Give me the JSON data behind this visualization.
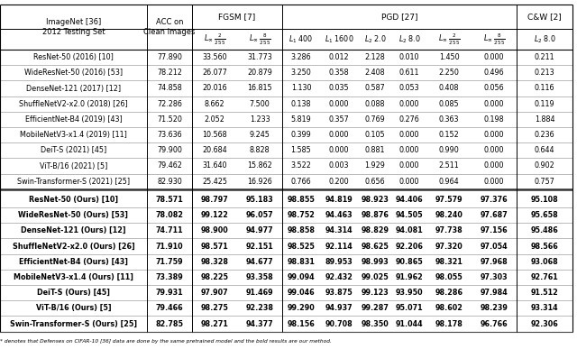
{
  "baseline_rows": [
    [
      "ResNet-50 (2016) [10]",
      "77.890",
      "33.560",
      "31.773",
      "3.286",
      "0.012",
      "2.128",
      "0.010",
      "1.450",
      "0.000",
      "0.211"
    ],
    [
      "WideResNet-50 (2016) [53]",
      "78.212",
      "26.077",
      "20.879",
      "3.250",
      "0.358",
      "2.408",
      "0.611",
      "2.250",
      "0.496",
      "0.213"
    ],
    [
      "DenseNet-121 (2017) [12]",
      "74.858",
      "20.016",
      "16.815",
      "1.130",
      "0.035",
      "0.587",
      "0.053",
      "0.408",
      "0.056",
      "0.116"
    ],
    [
      "ShuffleNetV2-x2.0 (2018) [26]",
      "72.286",
      "8.662",
      "7.500",
      "0.138",
      "0.000",
      "0.088",
      "0.000",
      "0.085",
      "0.000",
      "0.119"
    ],
    [
      "EfficientNet-B4 (2019) [43]",
      "71.520",
      "2.052",
      "1.233",
      "5.819",
      "0.357",
      "0.769",
      "0.276",
      "0.363",
      "0.198",
      "1.884"
    ],
    [
      "MobileNetV3-x1.4 (2019) [11]",
      "73.636",
      "10.568",
      "9.245",
      "0.399",
      "0.000",
      "0.105",
      "0.000",
      "0.152",
      "0.000",
      "0.236"
    ],
    [
      "DeiT-S (2021) [45]",
      "79.900",
      "20.684",
      "8.828",
      "1.585",
      "0.000",
      "0.881",
      "0.000",
      "0.990",
      "0.000",
      "0.644"
    ],
    [
      "ViT-B/16 (2021) [5]",
      "79.462",
      "31.640",
      "15.862",
      "3.522",
      "0.003",
      "1.929",
      "0.000",
      "2.511",
      "0.000",
      "0.902"
    ],
    [
      "Swin-Transformer-S (2021) [25]",
      "82.930",
      "25.425",
      "16.926",
      "0.766",
      "0.200",
      "0.656",
      "0.000",
      "0.964",
      "0.000",
      "0.757"
    ]
  ],
  "ours_rows": [
    [
      "ResNet-50 (Ours) [10]",
      "78.571",
      "98.797",
      "95.183",
      "98.855",
      "94.819",
      "98.923",
      "94.406",
      "97.579",
      "97.376",
      "95.108"
    ],
    [
      "WideResNet-50 (Ours) [53]",
      "78.082",
      "99.122",
      "96.057",
      "98.752",
      "94.463",
      "98.876",
      "94.505",
      "98.240",
      "97.687",
      "95.658"
    ],
    [
      "DenseNet-121 (Ours) [12]",
      "74.711",
      "98.900",
      "94.977",
      "98.858",
      "94.314",
      "98.829",
      "94.081",
      "97.738",
      "97.156",
      "95.486"
    ],
    [
      "ShuffleNetV2-x2.0 (Ours) [26]",
      "71.910",
      "98.571",
      "92.151",
      "98.525",
      "92.114",
      "98.625",
      "92.206",
      "97.320",
      "97.054",
      "98.566"
    ],
    [
      "EfficientNet-B4 (Ours) [43]",
      "71.759",
      "98.328",
      "94.677",
      "98.831",
      "89.953",
      "98.993",
      "90.865",
      "98.321",
      "97.968",
      "93.068"
    ],
    [
      "MobileNetV3-x1.4 (Ours) [11]",
      "73.389",
      "98.225",
      "93.358",
      "99.094",
      "92.432",
      "99.025",
      "91.962",
      "98.055",
      "97.303",
      "92.761"
    ],
    [
      "DeiT-S (Ours) [45]",
      "79.931",
      "97.907",
      "91.469",
      "99.046",
      "93.875",
      "99.123",
      "93.950",
      "98.286",
      "97.984",
      "91.512"
    ],
    [
      "ViT-B/16 (Ours) [5]",
      "79.466",
      "98.275",
      "92.238",
      "99.290",
      "94.937",
      "99.287",
      "95.071",
      "98.602",
      "98.239",
      "93.314"
    ],
    [
      "Swin-Transformer-S (Ours) [25]",
      "82.785",
      "98.271",
      "94.377",
      "98.156",
      "90.708",
      "98.350",
      "91.044",
      "98.178",
      "96.766",
      "92.306"
    ]
  ],
  "line_color": "#000000",
  "text_color": "#000000",
  "footer_text": "* denotes that Defenses on CIFAR-10 [36] data are done by the same pretrained model and the bold results are our method."
}
